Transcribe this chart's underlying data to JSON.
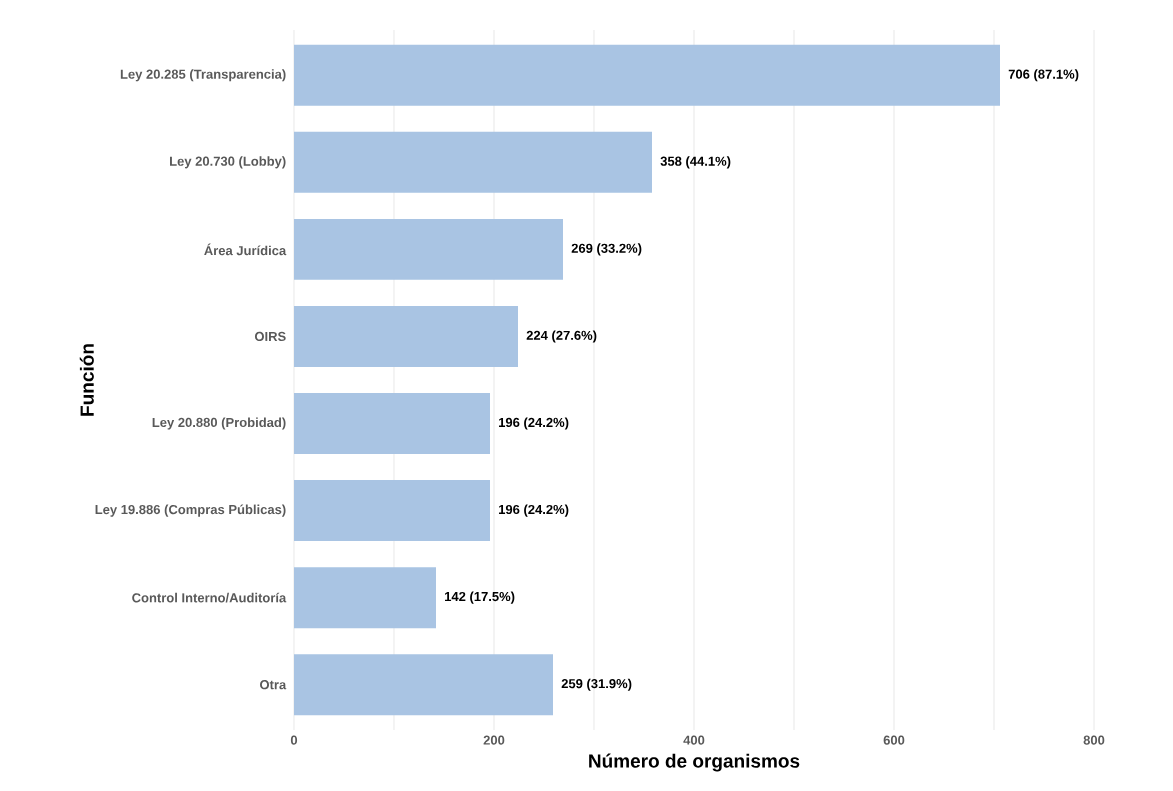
{
  "chart_data": {
    "type": "bar",
    "orientation": "horizontal",
    "xlabel": "Número de organismos",
    "ylabel": "Función",
    "categories": [
      "Ley 20.285 (Transparencia)",
      "Ley 20.730 (Lobby)",
      "Área Jurídica",
      "OIRS",
      "Ley 20.880 (Probidad)",
      "Ley 19.886 (Compras Públicas)",
      "Control Interno/Auditoría",
      "Otra"
    ],
    "values": [
      706,
      358,
      269,
      224,
      196,
      196,
      142,
      259
    ],
    "value_labels": [
      "706 (87.1%)",
      "358 (44.1%)",
      "269 (33.2%)",
      "224 (27.6%)",
      "196 (24.2%)",
      "196 (24.2%)",
      "142 (17.5%)",
      "259 (31.9%)"
    ],
    "color": "#a9c4e3",
    "xticks": [
      0,
      {
        "value": 100,
        "label": null
      },
      200,
      {
        "value": 300,
        "label": null
      },
      400,
      {
        "value": 500,
        "label": null
      },
      600,
      {
        "value": 700,
        "label": null
      },
      800
    ],
    "xlim": [
      0,
      800
    ],
    "grid": "x"
  }
}
